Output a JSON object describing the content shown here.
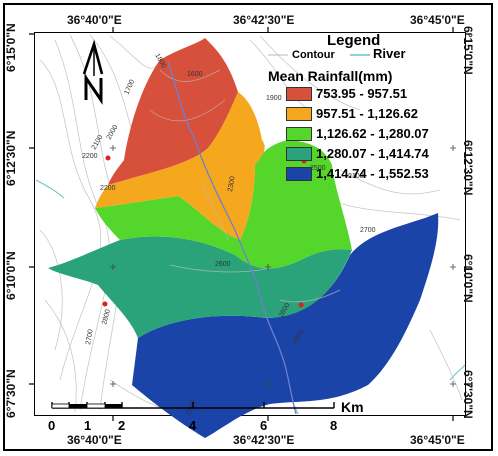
{
  "coords": {
    "top": [
      "36°40'0\"E",
      "36°42'30\"E",
      "36°45'0\"E"
    ],
    "bottom": [
      "36°40'0\"E",
      "36°42'30\"E",
      "36°45'0\"E"
    ],
    "left": [
      "6°15'0\"N",
      "6°12'30\"N",
      "6°10'0\"N",
      "6°7'30\"N"
    ],
    "right": [
      "6°15'0\"N",
      "6°12'30\"N",
      "6°10'0\"N",
      "6°7'30\"N"
    ]
  },
  "legend": {
    "title": "Legend",
    "contour_label": "Contour",
    "river_label": "River",
    "heading": "Mean Rainfall(mm)",
    "classes": [
      {
        "label": "753.95 - 957.51",
        "color": "#d6503c"
      },
      {
        "label": "957.51 - 1,126.62",
        "color": "#f5a81e"
      },
      {
        "label": "1,126.62 - 1,280.07",
        "color": "#55d62a"
      },
      {
        "label": "1,280.07 - 1,414.74",
        "color": "#2ba37a"
      },
      {
        "label": "1,414.74 - 1,552.53",
        "color": "#1a44a8"
      }
    ]
  },
  "contour_values": [
    "1800",
    "1900",
    "1600",
    "1700",
    "2000",
    "2100",
    "2500",
    "2200",
    "2300",
    "2200",
    "2700",
    "2600",
    "2800",
    "2800",
    "2700",
    "2800",
    "2100",
    "2100"
  ],
  "scale": {
    "ticks": [
      "0",
      "1",
      "2",
      "4",
      "6",
      "8"
    ],
    "unit": "Km"
  },
  "north_label": "N"
}
